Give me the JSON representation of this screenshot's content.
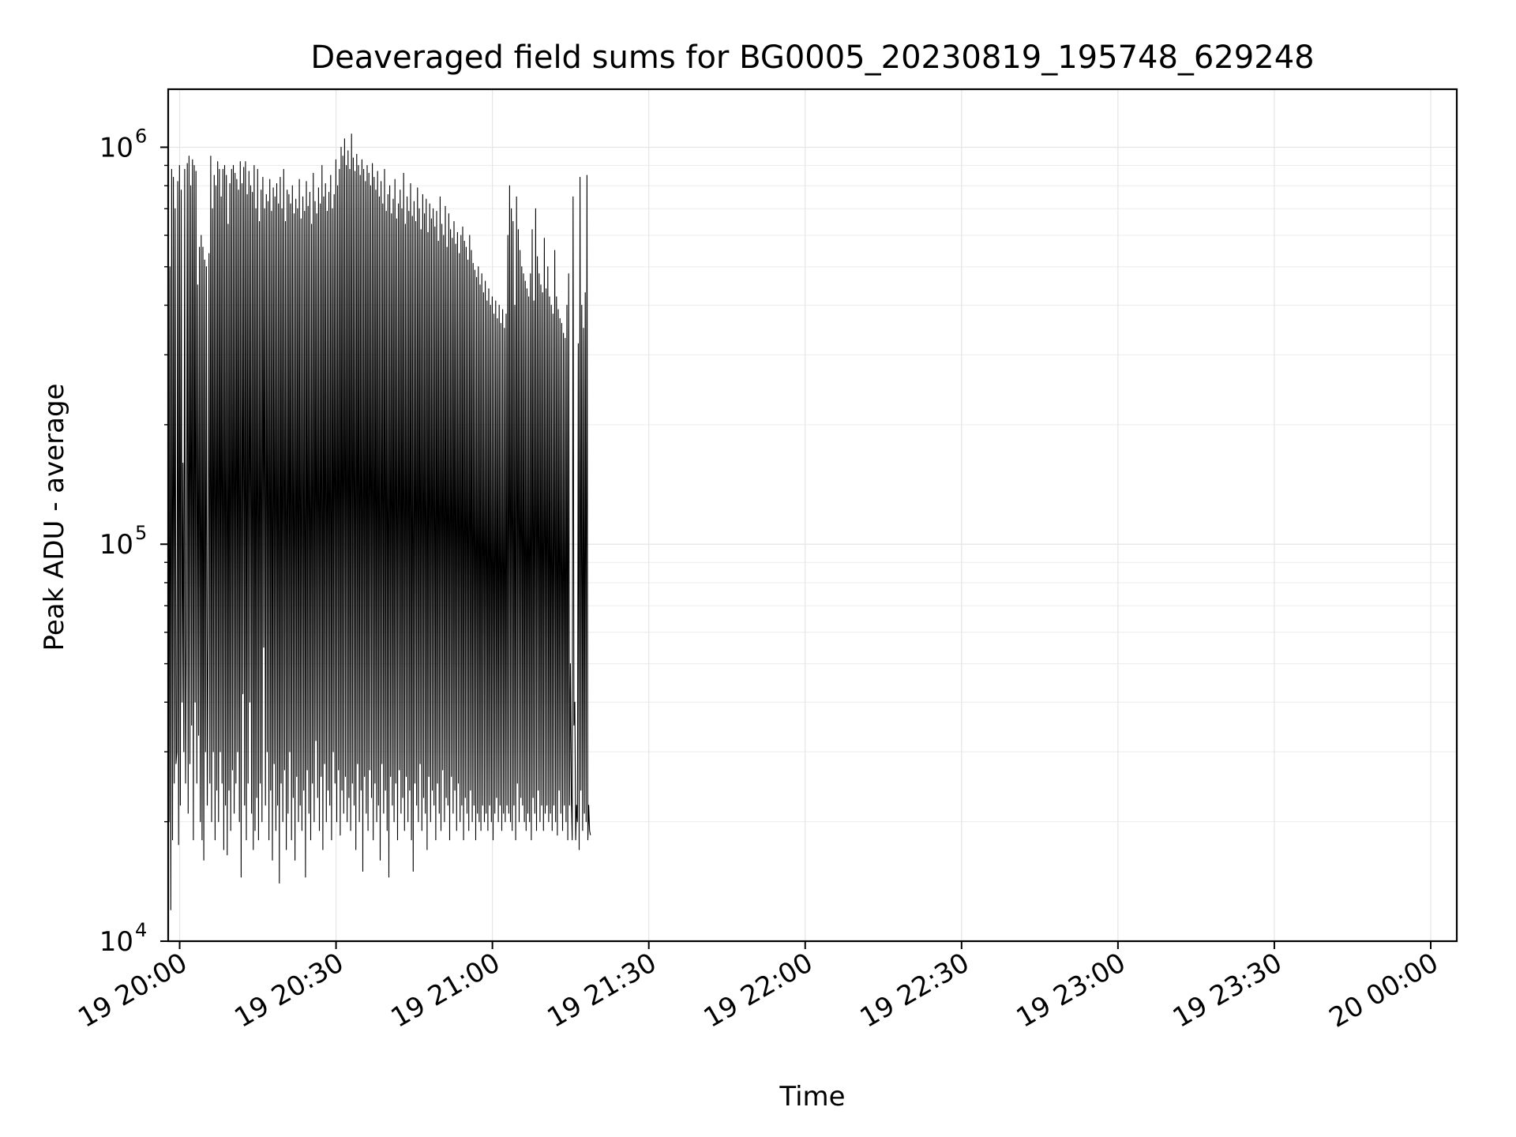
{
  "chart_data": {
    "type": "line",
    "title": "Deaveraged field sums for BG0005_20230819_195748_629248",
    "xlabel": "Time",
    "ylabel": "Peak ADU - average",
    "xaxis": {
      "kind": "time",
      "range": [
        "2023-08-19T19:57:48",
        "2023-08-20T00:05:00"
      ],
      "tick_values": [
        "2023-08-19T20:00",
        "2023-08-19T20:30",
        "2023-08-19T21:00",
        "2023-08-19T21:30",
        "2023-08-19T22:00",
        "2023-08-19T22:30",
        "2023-08-19T23:00",
        "2023-08-19T23:30",
        "2023-08-20T00:00"
      ],
      "tick_labels": [
        "19 20:00",
        "19 20:30",
        "19 21:00",
        "19 21:30",
        "19 22:00",
        "19 22:30",
        "19 23:00",
        "19 23:30",
        "20 00:00"
      ]
    },
    "yaxis": {
      "scale": "log",
      "range": [
        10000,
        1400000
      ],
      "ticks": [
        {
          "value": 10000,
          "base": "10",
          "exp": "4"
        },
        {
          "value": 100000,
          "base": "10",
          "exp": "5"
        },
        {
          "value": 1000000,
          "base": "10",
          "exp": "6"
        }
      ]
    },
    "grid": true,
    "line_color": "#000000",
    "series": [
      {
        "x_start": "2023-08-19T19:57:48",
        "x_step_seconds": 10,
        "values": [
          350000,
          20000,
          500000,
          12000,
          880000,
          18000,
          840000,
          25000,
          700000,
          28000,
          30000,
          820000,
          17500,
          900000,
          22000,
          780000,
          40000,
          160000,
          30000,
          880000,
          25000,
          60000,
          910000,
          21000,
          950000,
          28000,
          800000,
          35000,
          930000,
          18000,
          900000,
          40000,
          870000,
          25000,
          450000,
          33000,
          560000,
          20000,
          600000,
          18000,
          560000,
          16000,
          520000,
          30000,
          500000,
          22000,
          60000,
          540000,
          25000,
          950000,
          20000,
          700000,
          30000,
          850000,
          18000,
          800000,
          24000,
          920000,
          20000,
          880000,
          30000,
          750000,
          25000,
          880000,
          17000,
          900000,
          22000,
          850000,
          16500,
          640000,
          24000,
          810000,
          19000,
          880000,
          27000,
          900000,
          21000,
          860000,
          25000,
          830000,
          30000,
          780000,
          20000,
          920000,
          14500,
          810000,
          42000,
          890000,
          22000,
          920000,
          18000,
          760000,
          25000,
          870000,
          40000,
          800000,
          21000,
          770000,
          17000,
          900000,
          19000,
          700000,
          23000,
          880000,
          18000,
          650000,
          25000,
          780000,
          20000,
          840000,
          55000,
          700000,
          22000,
          760000,
          30000,
          730000,
          18000,
          830000,
          24000,
          690000,
          16000,
          790000,
          28000,
          750000,
          19000,
          810000,
          22000,
          720000,
          14000,
          840000,
          25000,
          700000,
          20000,
          880000,
          27000,
          650000,
          17000,
          780000,
          21000,
          760000,
          30000,
          720000,
          18000,
          800000,
          23000,
          680000,
          16000,
          740000,
          26000,
          700000,
          20000,
          830000,
          22000,
          660000,
          19000,
          750000,
          24000,
          690000,
          14500,
          820000,
          27000,
          710000,
          21000,
          770000,
          18000,
          640000,
          25000,
          860000,
          20000,
          730000,
          32000,
          680000,
          23000,
          790000,
          19000,
          720000,
          26000,
          900000,
          17000,
          750000,
          28000,
          810000,
          20000,
          690000,
          24000,
          770000,
          22000,
          850000,
          18000,
          700000,
          30000,
          760000,
          25000,
          930000,
          20000,
          800000,
          27000,
          880000,
          18500,
          1000000,
          24000,
          950000,
          21000,
          1050000,
          26000,
          900000,
          20000,
          980000,
          23000,
          880000,
          19000,
          1080000,
          25000,
          940000,
          22000,
          870000,
          17000,
          960000,
          28000,
          900000,
          20000,
          850000,
          24000,
          930000,
          15000,
          880000,
          26000,
          820000,
          21000,
          900000,
          19000,
          860000,
          27000,
          800000,
          23000,
          910000,
          18000,
          840000,
          25000,
          780000,
          20000,
          870000,
          22000,
          750000,
          16000,
          820000,
          28000,
          720000,
          21000,
          880000,
          24000,
          690000,
          19000,
          760000,
          14500,
          800000,
          26000,
          680000,
          22000,
          740000,
          20000,
          830000,
          25000,
          660000,
          18000,
          720000,
          27000,
          780000,
          21000,
          700000,
          23000,
          860000,
          19000,
          640000,
          26000,
          750000,
          20000,
          690000,
          24000,
          810000,
          18000,
          670000,
          15000,
          730000,
          25000,
          650000,
          22000,
          790000,
          20000,
          700000,
          28000,
          620000,
          19000,
          760000,
          23000,
          680000,
          21000,
          740000,
          17000,
          610000,
          26000,
          720000,
          20000,
          660000,
          24000,
          700000,
          22000,
          630000,
          18000,
          690000,
          25000,
          580000,
          21000,
          750000,
          19000,
          640000,
          27000,
          600000,
          20000,
          710000,
          23000,
          560000,
          22000,
          680000,
          18000,
          620000,
          26000,
          590000,
          21000,
          650000,
          24000,
          570000,
          19000,
          610000,
          25000,
          540000,
          20000,
          600000,
          22000,
          630000,
          18000,
          580000,
          23000,
          560000,
          21000,
          520000,
          19000,
          600000,
          24000,
          550000,
          20000,
          510000,
          22000,
          490000,
          18000,
          470000,
          21000,
          500000,
          20000,
          450000,
          19000,
          480000,
          22000,
          430000,
          20000,
          460000,
          21000,
          410000,
          19000,
          440000,
          22000,
          400000,
          20000,
          420000,
          18000,
          380000,
          21000,
          410000,
          23000,
          370000,
          20000,
          400000,
          22000,
          360000,
          19000,
          390000,
          21000,
          350000,
          20000,
          380000,
          22000,
          600000,
          21000,
          800000,
          20000,
          700000,
          19000,
          650000,
          22000,
          400000,
          18000,
          750000,
          25000,
          620000,
          20000,
          550000,
          23000,
          500000,
          22000,
          480000,
          20000,
          460000,
          19000,
          440000,
          21000,
          420000,
          20000,
          480000,
          18000,
          620000,
          23000,
          410000,
          21000,
          700000,
          19000,
          530000,
          24000,
          480000,
          20000,
          450000,
          22000,
          430000,
          19000,
          590000,
          21000,
          440000,
          22000,
          500000,
          20000,
          420000,
          21000,
          400000,
          19000,
          380000,
          22000,
          550000,
          20000,
          420000,
          18500,
          390000,
          24000,
          370000,
          21000,
          360000,
          19000,
          340000,
          22000,
          330000,
          20000,
          400000,
          18000,
          480000,
          22000,
          50000,
          23000,
          18000,
          750000,
          35000,
          40000,
          18000,
          22000,
          20000,
          320000,
          17000,
          840000,
          24000,
          400000,
          19000,
          350000,
          21000,
          430000,
          20000,
          850000,
          18000,
          22000,
          19000,
          18500
        ]
      }
    ]
  }
}
